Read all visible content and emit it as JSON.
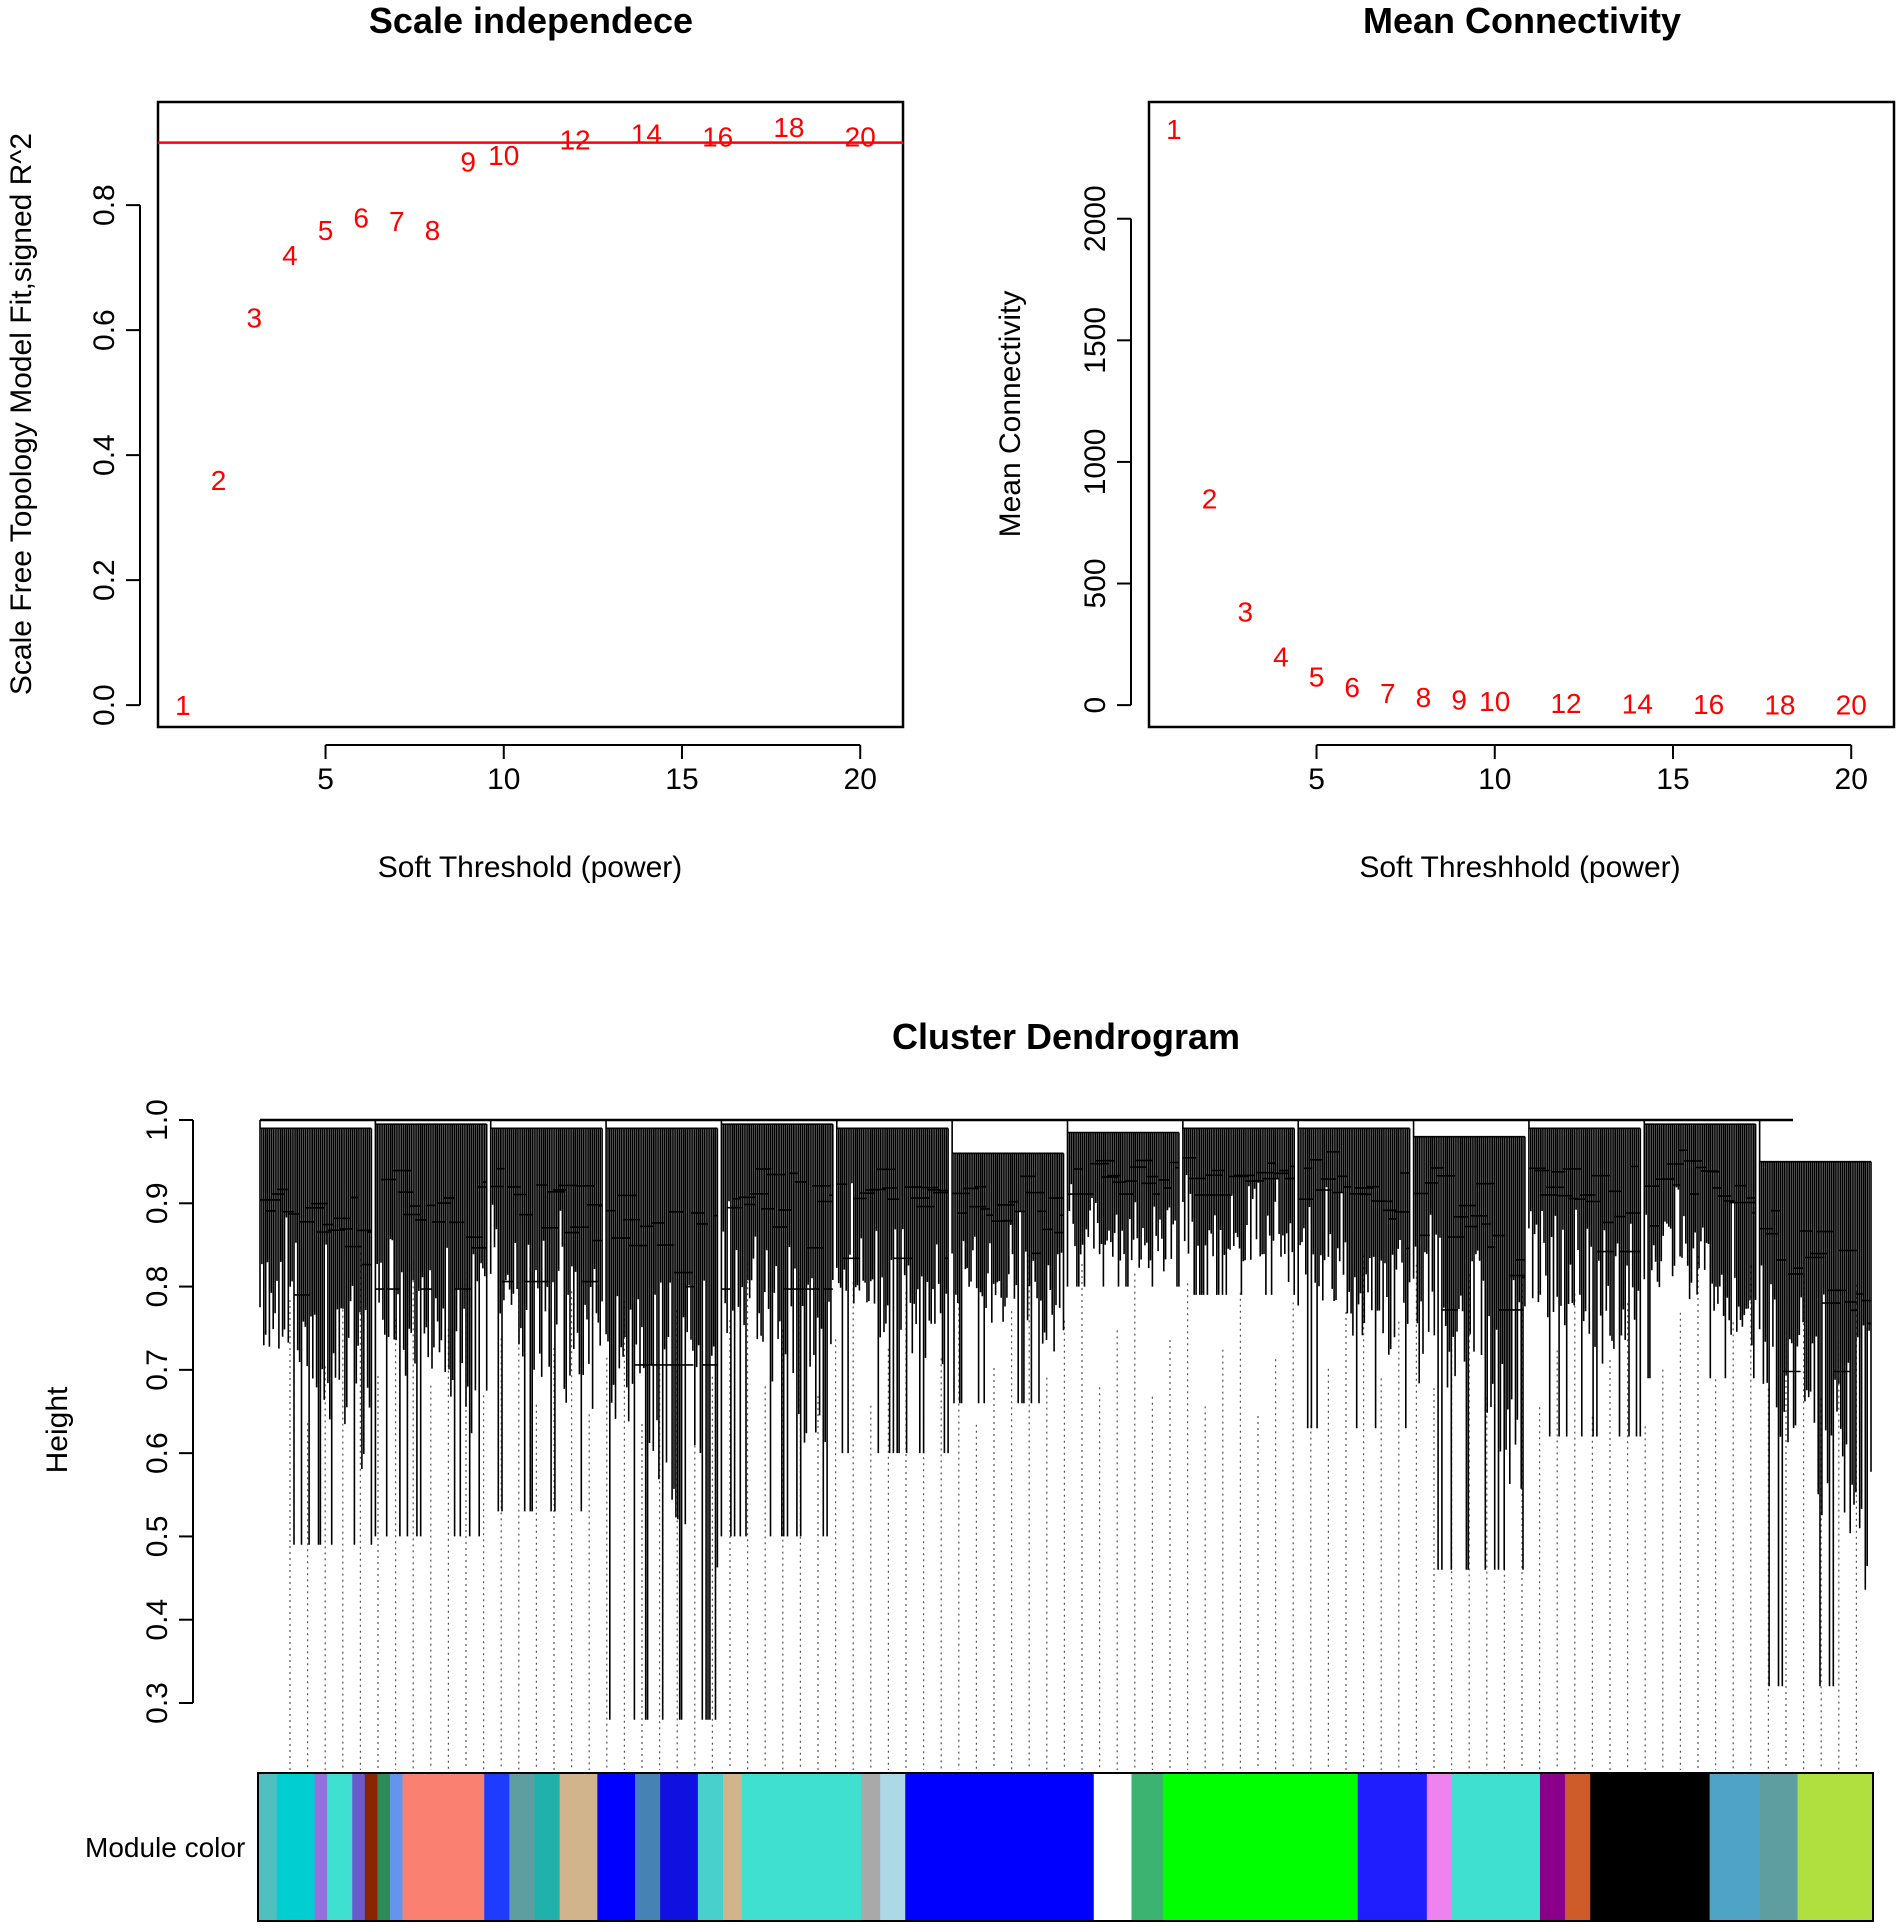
{
  "chart_data": [
    {
      "type": "scatter",
      "title": "Scale independece",
      "xlabel": "Soft Threshold (power)",
      "ylabel": "Scale Free Topology Model Fit,signed R^2",
      "xlim": [
        0.3,
        21.2
      ],
      "ylim": [
        -0.035,
        0.965
      ],
      "xticks": [
        5,
        10,
        15,
        20
      ],
      "yticks": [
        0.0,
        0.2,
        0.4,
        0.6,
        0.8
      ],
      "ytick_labels": [
        "0.0",
        "0.2",
        "0.4",
        "0.6",
        "0.8"
      ],
      "hline": 0.9,
      "hline_color": "#ff0000",
      "point_color": "#ff0000",
      "labels": [
        "1",
        "2",
        "3",
        "4",
        "5",
        "6",
        "7",
        "8",
        "9",
        "10",
        "12",
        "14",
        "16",
        "18",
        "20"
      ],
      "x": [
        1,
        2,
        3,
        4,
        5,
        6,
        7,
        8,
        9,
        10,
        12,
        14,
        16,
        18,
        20
      ],
      "y": [
        0.0,
        0.36,
        0.62,
        0.72,
        0.76,
        0.78,
        0.775,
        0.76,
        0.87,
        0.88,
        0.905,
        0.915,
        0.91,
        0.925,
        0.91
      ]
    },
    {
      "type": "scatter",
      "title": "Mean Connectivity",
      "xlabel": "Soft Threshhold (power)",
      "ylabel": "Mean Connectivity",
      "xlim": [
        0.3,
        21.2
      ],
      "ylim": [
        -90,
        2480
      ],
      "xticks": [
        5,
        10,
        15,
        20
      ],
      "yticks": [
        0,
        500,
        1000,
        1500,
        2000
      ],
      "ytick_labels": [
        "0",
        "500",
        "1000",
        "1500",
        "2000"
      ],
      "point_color": "#ff0000",
      "labels": [
        "1",
        "2",
        "3",
        "4",
        "5",
        "6",
        "7",
        "8",
        "9",
        "10",
        "12",
        "14",
        "16",
        "18",
        "20"
      ],
      "x": [
        1,
        2,
        3,
        4,
        5,
        6,
        7,
        8,
        9,
        10,
        12,
        14,
        16,
        18,
        20
      ],
      "y": [
        2370,
        850,
        385,
        200,
        118,
        75,
        50,
        33,
        24,
        17,
        9,
        6,
        4,
        3,
        2
      ]
    },
    {
      "type": "dendrogram",
      "title": "Cluster Dendrogram",
      "ylabel": "Height",
      "ylim": [
        0.3,
        1.0
      ],
      "yticks": [
        0.3,
        0.4,
        0.5,
        0.6,
        0.7,
        0.8,
        0.9,
        1.0
      ],
      "ytick_labels": [
        "0.3",
        "0.4",
        "0.5",
        "0.6",
        "0.7",
        "0.8",
        "0.9",
        "1.0"
      ],
      "color_bar_label": "Module color",
      "branch_merge_heights": [
        0.99,
        0.995,
        0.99,
        0.99,
        0.995,
        0.99,
        0.96,
        0.985,
        0.99,
        0.99,
        0.98,
        0.99,
        0.995,
        0.95
      ],
      "branch_min_heights": [
        0.49,
        0.5,
        0.53,
        0.28,
        0.5,
        0.6,
        0.66,
        0.8,
        0.79,
        0.63,
        0.46,
        0.62,
        0.69,
        0.32
      ],
      "module_colors": [
        {
          "color": "#4fbfbf",
          "weight": 1.5
        },
        {
          "color": "#00ced1",
          "weight": 3
        },
        {
          "color": "#9370db",
          "weight": 1
        },
        {
          "color": "#40e0d0",
          "weight": 2
        },
        {
          "color": "#6a5acd",
          "weight": 1
        },
        {
          "color": "#8b2500",
          "weight": 1
        },
        {
          "color": "#2e8b57",
          "weight": 1
        },
        {
          "color": "#6495ed",
          "weight": 1
        },
        {
          "color": "#fa8072",
          "weight": 6.5
        },
        {
          "color": "#1e3cff",
          "weight": 2
        },
        {
          "color": "#5f9ea0",
          "weight": 2
        },
        {
          "color": "#20b2aa",
          "weight": 2
        },
        {
          "color": "#d2b48c",
          "weight": 3
        },
        {
          "color": "#0000ff",
          "weight": 3
        },
        {
          "color": "#4682b4",
          "weight": 2
        },
        {
          "color": "#1010e0",
          "weight": 3
        },
        {
          "color": "#48d1cc",
          "weight": 2
        },
        {
          "color": "#d2b48c",
          "weight": 1.5
        },
        {
          "color": "#40e0d0",
          "weight": 9.5
        },
        {
          "color": "#a9a9a9",
          "weight": 1.5
        },
        {
          "color": "#add8e6",
          "weight": 2
        },
        {
          "color": "#0000ff",
          "weight": 15
        },
        {
          "color": "#ffffff",
          "weight": 3
        },
        {
          "color": "#3cb371",
          "weight": 2.5
        },
        {
          "color": "#00ff00",
          "weight": 15.5
        },
        {
          "color": "#1e1eff",
          "weight": 5.5
        },
        {
          "color": "#ee82ee",
          "weight": 2
        },
        {
          "color": "#40e0d0",
          "weight": 7
        },
        {
          "color": "#8b008b",
          "weight": 2
        },
        {
          "color": "#cd5c2a",
          "weight": 2
        },
        {
          "color": "#000000",
          "weight": 9.5
        },
        {
          "color": "#4fa3c7",
          "weight": 4
        },
        {
          "color": "#5f9ea0",
          "weight": 3
        },
        {
          "color": "#b0e040",
          "weight": 6
        }
      ]
    }
  ]
}
